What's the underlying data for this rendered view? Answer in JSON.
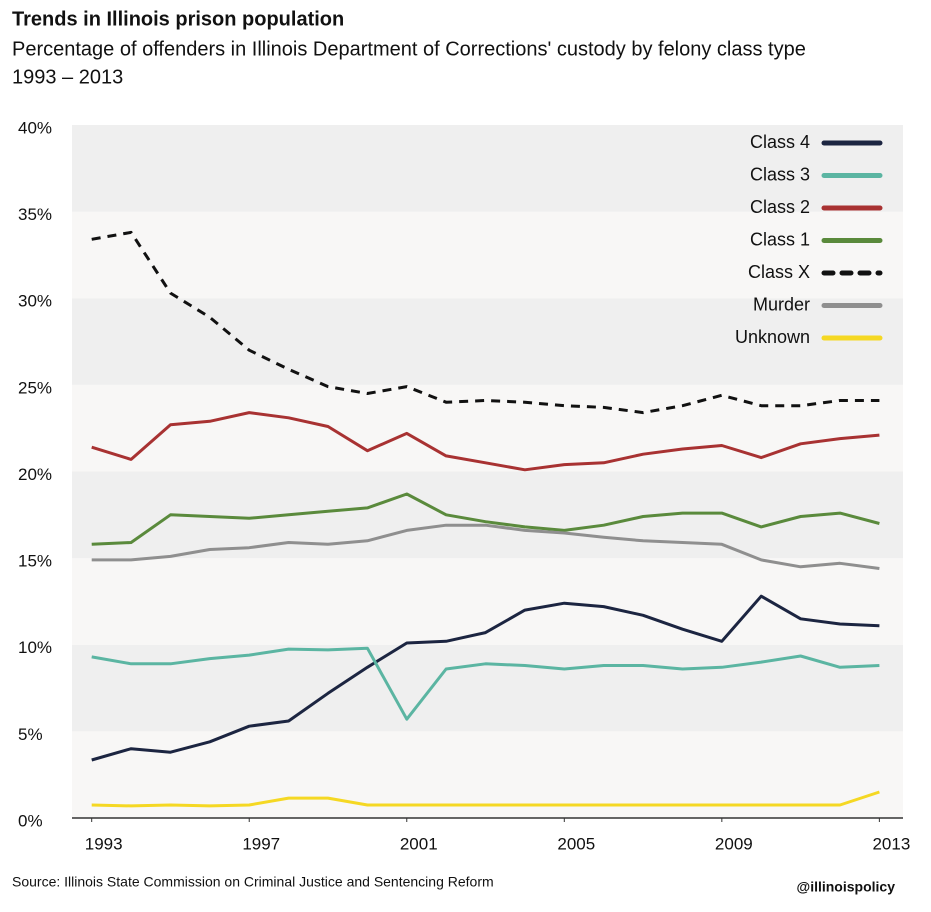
{
  "chart_data": {
    "type": "line",
    "title": "Trends in Illinois prison population",
    "subtitle": "Percentage of offenders in Illinois Department of Corrections' custody by felony class type",
    "date_range": "1993 – 2013",
    "source": "Source: Illinois State Commission on Criminal Justice and Sentencing Reform",
    "credit": "@illinoispolicy",
    "x": [
      1993,
      1994,
      1995,
      1996,
      1997,
      1998,
      1999,
      2000,
      2001,
      2002,
      2003,
      2004,
      2005,
      2006,
      2007,
      2008,
      2009,
      2010,
      2011,
      2012,
      2013
    ],
    "xlim": [
      1992.5,
      2013.6
    ],
    "xticks": [
      1993,
      1997,
      2001,
      2005,
      2009,
      2013
    ],
    "ylim": [
      0,
      40
    ],
    "yticks": [
      {
        "value": 0,
        "label": "0%"
      },
      {
        "value": 5,
        "label": "5%"
      },
      {
        "value": 10,
        "label": "10%"
      },
      {
        "value": 15,
        "label": "15%"
      },
      {
        "value": 20,
        "label": "20%"
      },
      {
        "value": 25,
        "label": "25%"
      },
      {
        "value": 30,
        "label": "30%"
      },
      {
        "value": 35,
        "label": "35%"
      },
      {
        "value": 40,
        "label": "40%"
      }
    ],
    "band_colors": [
      "#f8f7f6",
      "#efefef"
    ],
    "legend": "top-right",
    "series": [
      {
        "name": "Class 4",
        "color": "#1c2541",
        "style": "solid",
        "values": [
          3.35,
          4.0,
          3.8,
          4.4,
          5.3,
          5.6,
          7.2,
          8.7,
          10.1,
          10.2,
          10.7,
          12.0,
          12.4,
          12.2,
          11.7,
          10.9,
          10.2,
          12.8,
          11.5,
          11.2,
          11.1
        ]
      },
      {
        "name": "Class 3",
        "color": "#5bb5a2",
        "style": "solid",
        "values": [
          9.3,
          8.9,
          8.9,
          9.2,
          9.4,
          9.75,
          9.7,
          9.8,
          5.7,
          8.6,
          8.9,
          8.8,
          8.6,
          8.8,
          8.8,
          8.6,
          8.7,
          9.0,
          9.35,
          8.7,
          8.8
        ]
      },
      {
        "name": "Class 2",
        "color": "#a83232",
        "style": "solid",
        "values": [
          21.4,
          20.7,
          22.7,
          22.9,
          23.4,
          23.1,
          22.6,
          21.2,
          22.2,
          20.9,
          20.5,
          20.1,
          20.4,
          20.5,
          21.0,
          21.3,
          21.5,
          20.8,
          21.6,
          21.9,
          22.1
        ]
      },
      {
        "name": "Class 1",
        "color": "#5a8a3c",
        "style": "solid",
        "values": [
          15.8,
          15.9,
          17.5,
          17.4,
          17.3,
          17.5,
          17.7,
          17.9,
          18.7,
          17.5,
          17.1,
          16.8,
          16.6,
          16.9,
          17.4,
          17.6,
          17.6,
          16.8,
          17.4,
          17.6,
          17.0
        ]
      },
      {
        "name": "Class X",
        "color": "#111111",
        "style": "dashed",
        "values": [
          33.4,
          33.8,
          30.3,
          28.9,
          27.0,
          25.9,
          24.9,
          24.5,
          24.9,
          24.0,
          24.1,
          24.0,
          23.8,
          23.7,
          23.4,
          23.8,
          24.4,
          23.8,
          23.8,
          24.1,
          24.1
        ]
      },
      {
        "name": "Murder",
        "color": "#8f8f8f",
        "style": "solid",
        "values": [
          14.9,
          14.9,
          15.1,
          15.5,
          15.6,
          15.9,
          15.8,
          16.0,
          16.6,
          16.9,
          16.9,
          16.6,
          16.45,
          16.2,
          16.0,
          15.9,
          15.8,
          14.9,
          14.5,
          14.7,
          14.4
        ]
      },
      {
        "name": "Unknown",
        "color": "#f5d823",
        "style": "solid",
        "values": [
          0.75,
          0.7,
          0.75,
          0.7,
          0.75,
          1.15,
          1.15,
          0.75,
          0.75,
          0.75,
          0.75,
          0.75,
          0.75,
          0.75,
          0.75,
          0.75,
          0.75,
          0.75,
          0.75,
          0.75,
          1.5
        ]
      }
    ]
  }
}
